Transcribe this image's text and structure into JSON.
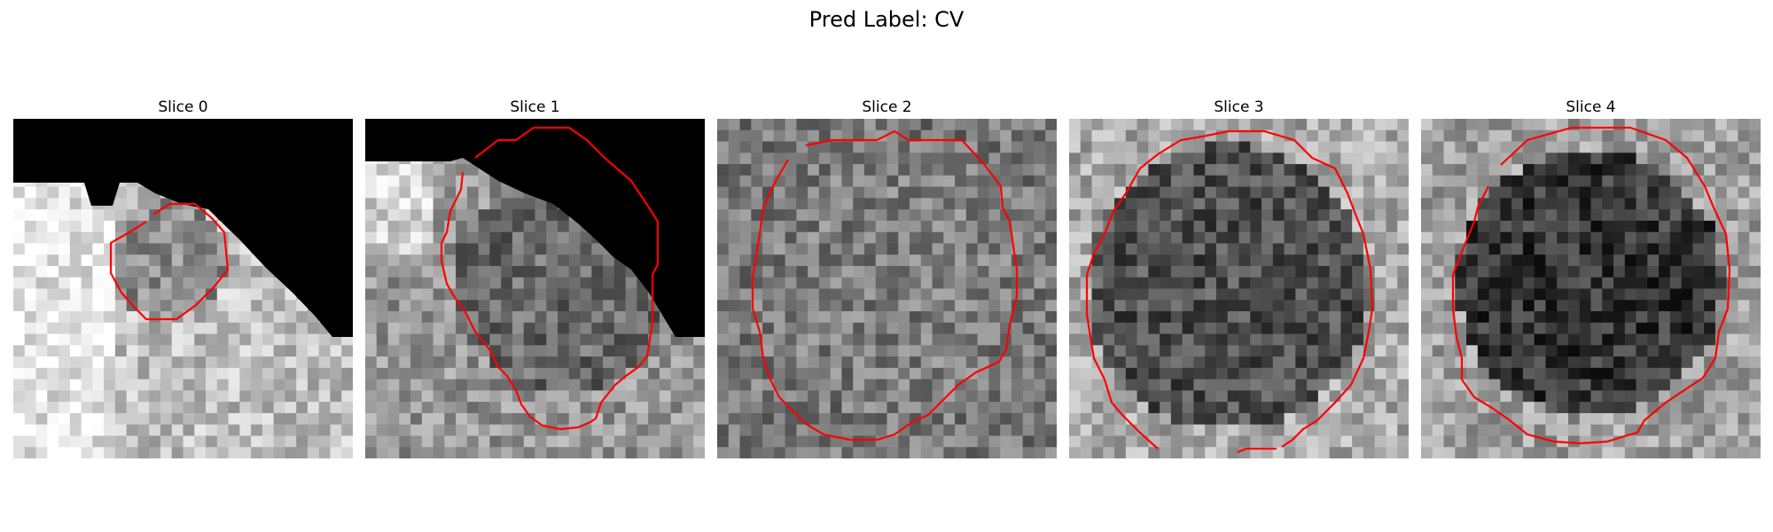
{
  "figure": {
    "title": "Pred Label: CV"
  },
  "panels": [
    {
      "title": "Slice 0",
      "scene": "edge-region-with-small-nodule"
    },
    {
      "title": "Slice 1",
      "scene": "edge-region-with-large-contour"
    },
    {
      "title": "Slice 2",
      "scene": "mid-grey-textured-circle"
    },
    {
      "title": "Slice 3",
      "scene": "dark-textured-circle"
    },
    {
      "title": "Slice 4",
      "scene": "dark-circle-on-light-background"
    }
  ],
  "colors": {
    "contour": "#ff0000",
    "mask": "#000000"
  }
}
